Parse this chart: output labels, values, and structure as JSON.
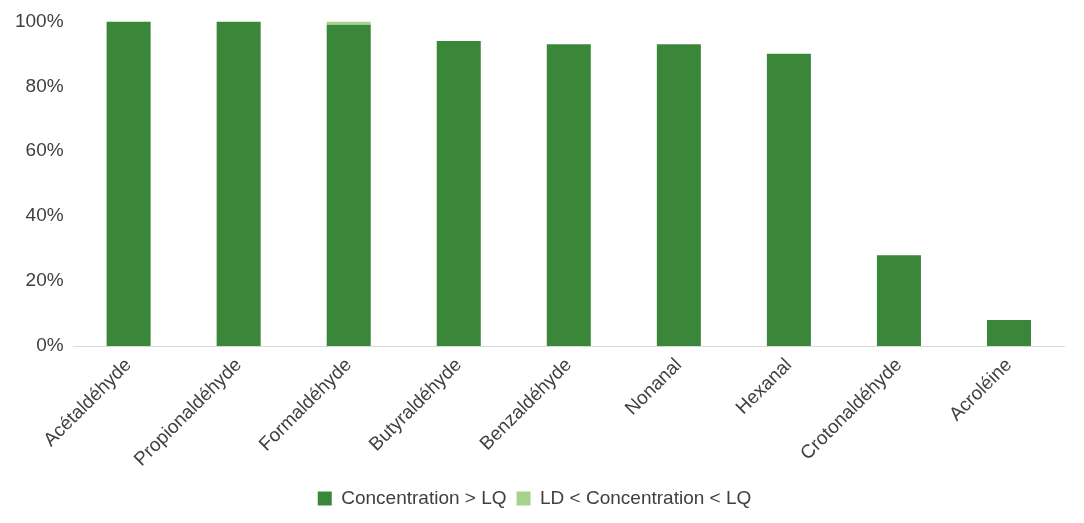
{
  "chart_data": {
    "type": "bar",
    "stacked": true,
    "categories": [
      "Acétaldéhyde",
      "Propionaldéhyde",
      "Formaldéhyde",
      "Butyraldéhyde",
      "Benzaldéhyde",
      "Nonanal",
      "Hexanal",
      "Crotonaldéhyde",
      "Acroléine"
    ],
    "series": [
      {
        "name": "Concentration > LQ",
        "color": "#3a873a",
        "values": [
          100,
          100,
          99,
          94,
          93,
          93,
          90,
          28,
          8
        ]
      },
      {
        "name": "LD < Concentration < LQ",
        "color": "#a9d18e",
        "values": [
          0,
          0,
          1,
          0,
          0,
          0,
          0,
          0,
          0
        ]
      }
    ],
    "ylim": [
      0,
      100
    ],
    "yticks": [
      {
        "value": 0,
        "label": "0%"
      },
      {
        "value": 20,
        "label": "20%"
      },
      {
        "value": 40,
        "label": "40%"
      },
      {
        "value": 60,
        "label": "60%"
      },
      {
        "value": 80,
        "label": "80%"
      },
      {
        "value": 100,
        "label": "100%"
      }
    ],
    "grid": false,
    "legend": "bottom"
  }
}
